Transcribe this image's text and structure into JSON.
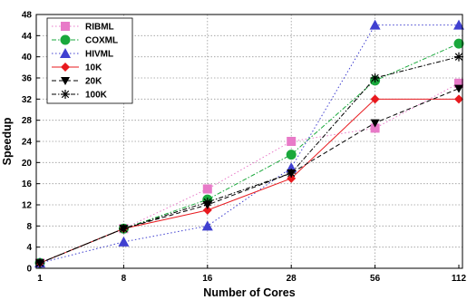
{
  "chart_data": {
    "type": "line",
    "categories": [
      "1",
      "8",
      "16",
      "28",
      "56",
      "112"
    ],
    "xlabel": "Number of Cores",
    "ylabel": "Speedup",
    "ylim": [
      0,
      48
    ],
    "yticks": [
      0,
      4,
      8,
      12,
      16,
      20,
      24,
      28,
      32,
      36,
      40,
      44,
      48
    ],
    "grid": true,
    "legend_position": "top-left",
    "series": [
      {
        "name": "RIBML",
        "color": "#e87ac8",
        "marker": "square",
        "line": "dotted",
        "values": [
          1,
          7.5,
          15,
          24,
          26.5,
          35
        ]
      },
      {
        "name": "COXML",
        "color": "#1aa83c",
        "marker": "circle",
        "line": "dashdot",
        "values": [
          1,
          7.5,
          13,
          21.5,
          35.5,
          42.5
        ]
      },
      {
        "name": "HIVML",
        "color": "#4040d0",
        "marker": "triangle-up",
        "line": "dotted",
        "values": [
          1,
          5,
          8,
          19,
          46,
          46
        ]
      },
      {
        "name": "10K",
        "color": "#e8191e",
        "marker": "diamond",
        "line": "solid",
        "values": [
          1,
          7.5,
          11,
          17,
          32,
          32
        ]
      },
      {
        "name": "20K",
        "color": "#000000",
        "marker": "triangle-down",
        "line": "dashed",
        "values": [
          1,
          7.5,
          12,
          18,
          27.5,
          34
        ]
      },
      {
        "name": "100K",
        "color": "#000000",
        "marker": "asterisk",
        "line": "dashdot",
        "values": [
          1,
          7.5,
          12.5,
          18,
          36,
          40
        ]
      }
    ]
  }
}
